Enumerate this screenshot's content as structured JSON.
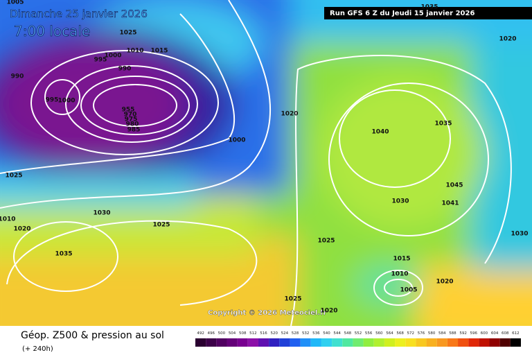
{
  "header": {
    "valid_date": "Dimanche 25 janvier 2026",
    "local_time": "7:00 locale",
    "run": "Run GFS 6 Z du Jeudi 15 janvier 2026"
  },
  "copyright": "Copyright © 2026 Meteociel.fr",
  "footer": {
    "title": "Géop. Z500 & pression au sol",
    "lead": "(+ 240h)"
  },
  "isobar_labels": [
    1005,
    1025,
    1010,
    1015,
    1000,
    995,
    990,
    990,
    995,
    1000,
    955,
    970,
    975,
    980,
    985,
    1020,
    1000,
    1040,
    1035,
    1020,
    1045,
    1041,
    1030,
    1025,
    1030,
    1025,
    1035,
    1025,
    1015,
    1010,
    1005,
    1020,
    1025,
    1020,
    1030,
    1010,
    1020,
    1035
  ],
  "scale_labels": [
    492,
    496,
    500,
    504,
    508,
    512,
    516,
    520,
    524,
    528,
    532,
    536,
    540,
    544,
    548,
    552,
    556,
    560,
    564,
    568,
    572,
    576,
    580,
    584,
    588,
    592,
    596,
    600,
    604,
    608,
    612
  ]
}
